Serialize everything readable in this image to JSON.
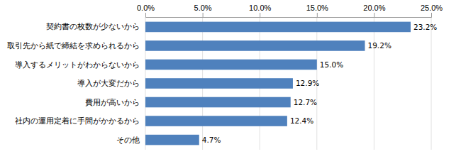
{
  "chart_data": {
    "type": "bar",
    "orientation": "horizontal",
    "categories": [
      "契約書の枚数が少ないから",
      "取引先から紙で締結を求められるから",
      "導入するメリットがわからないから",
      "導入が大変だから",
      "費用が高いから",
      "社内の運用定着に手間がかかるから",
      "その他"
    ],
    "values": [
      23.2,
      19.2,
      15.0,
      12.9,
      12.7,
      12.4,
      4.7
    ],
    "value_labels": [
      "23.2%",
      "19.2%",
      "15.0%",
      "12.9%",
      "12.7%",
      "12.4%",
      "4.7%"
    ],
    "color": "#4f81bd",
    "xlim": [
      0,
      25
    ],
    "xticks": [
      {
        "value": 0,
        "label": "0.0%"
      },
      {
        "value": 5,
        "label": "5.0%"
      },
      {
        "value": 10,
        "label": "10.0%"
      },
      {
        "value": 15,
        "label": "15.0%"
      },
      {
        "value": 20,
        "label": "20.0%"
      },
      {
        "value": 25,
        "label": "25.0%"
      }
    ],
    "grid": true,
    "data_labels": true
  }
}
